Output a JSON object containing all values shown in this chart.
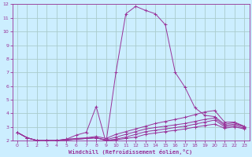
{
  "bg_color": "#cceeff",
  "grid_color": "#aacccc",
  "line_color": "#993399",
  "xlabel": "Windchill (Refroidissement éolien,°C)",
  "xlim": [
    -0.5,
    23.5
  ],
  "ylim": [
    2,
    12
  ],
  "yticks": [
    2,
    3,
    4,
    5,
    6,
    7,
    8,
    9,
    10,
    11,
    12
  ],
  "xticks": [
    0,
    1,
    2,
    3,
    4,
    5,
    6,
    7,
    8,
    9,
    10,
    11,
    12,
    13,
    14,
    15,
    16,
    17,
    18,
    19,
    20,
    21,
    22,
    23
  ],
  "lines": [
    {
      "x": [
        0,
        1,
        2,
        3,
        4,
        5,
        6,
        7,
        8,
        9,
        10,
        11,
        12,
        13,
        14,
        15,
        16,
        17,
        18,
        19,
        20,
        21,
        22,
        23
      ],
      "y": [
        2.6,
        2.2,
        2.0,
        2.0,
        2.0,
        2.1,
        2.4,
        2.6,
        4.5,
        1.85,
        7.0,
        11.3,
        11.85,
        11.55,
        11.3,
        10.5,
        7.0,
        5.9,
        4.4,
        3.85,
        3.75,
        3.2,
        3.3,
        3.0
      ]
    },
    {
      "x": [
        0,
        1,
        2,
        3,
        4,
        5,
        6,
        7,
        8,
        9,
        10,
        11,
        12,
        13,
        14,
        15,
        16,
        17,
        18,
        19,
        20,
        21,
        22,
        23
      ],
      "y": [
        2.6,
        2.2,
        2.0,
        2.0,
        2.0,
        2.1,
        2.15,
        2.2,
        2.3,
        2.15,
        2.45,
        2.65,
        2.85,
        3.05,
        3.25,
        3.4,
        3.55,
        3.7,
        3.9,
        4.1,
        4.2,
        3.35,
        3.35,
        3.05
      ]
    },
    {
      "x": [
        0,
        1,
        2,
        3,
        4,
        5,
        6,
        7,
        8,
        9,
        10,
        11,
        12,
        13,
        14,
        15,
        16,
        17,
        18,
        19,
        20,
        21,
        22,
        23
      ],
      "y": [
        2.6,
        2.2,
        2.0,
        2.0,
        2.0,
        2.05,
        2.1,
        2.15,
        2.2,
        2.05,
        2.25,
        2.45,
        2.65,
        2.85,
        2.95,
        3.05,
        3.15,
        3.25,
        3.4,
        3.55,
        3.65,
        3.1,
        3.2,
        3.0
      ]
    },
    {
      "x": [
        0,
        1,
        2,
        3,
        4,
        5,
        6,
        7,
        8,
        9,
        10,
        11,
        12,
        13,
        14,
        15,
        16,
        17,
        18,
        19,
        20,
        21,
        22,
        23
      ],
      "y": [
        2.6,
        2.2,
        2.0,
        2.0,
        2.0,
        2.05,
        2.1,
        2.15,
        2.2,
        2.0,
        2.1,
        2.25,
        2.45,
        2.65,
        2.75,
        2.85,
        2.95,
        3.05,
        3.2,
        3.35,
        3.5,
        3.0,
        3.1,
        2.9
      ]
    },
    {
      "x": [
        0,
        1,
        2,
        3,
        4,
        5,
        6,
        7,
        8,
        9,
        10,
        11,
        12,
        13,
        14,
        15,
        16,
        17,
        18,
        19,
        20,
        21,
        22,
        23
      ],
      "y": [
        2.6,
        2.2,
        2.0,
        2.0,
        2.0,
        2.05,
        2.1,
        2.15,
        2.2,
        2.0,
        2.05,
        2.15,
        2.25,
        2.45,
        2.55,
        2.65,
        2.75,
        2.85,
        2.98,
        3.1,
        3.2,
        2.9,
        3.0,
        2.85
      ]
    }
  ]
}
